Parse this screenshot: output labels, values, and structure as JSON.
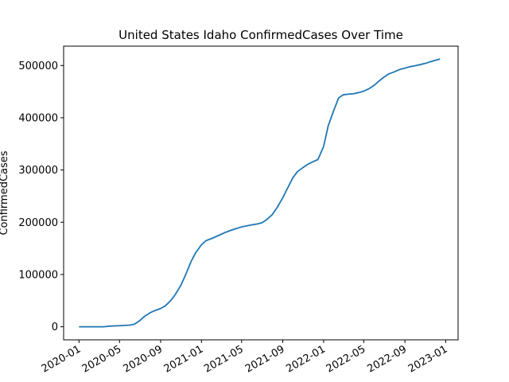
{
  "chart_data": {
    "type": "line",
    "title": "United States Idaho ConfirmedCases Over Time",
    "xlabel": "",
    "ylabel": "ConfirmedCases",
    "x_tick_labels": [
      "2020-01",
      "2020-05",
      "2020-09",
      "2021-01",
      "2021-05",
      "2021-09",
      "2022-01",
      "2022-05",
      "2022-09",
      "2023-01"
    ],
    "y_ticks": [
      0,
      100000,
      200000,
      300000,
      400000,
      500000
    ],
    "y_tick_labels": [
      "0",
      "100000",
      "200000",
      "300000",
      "400000",
      "500000"
    ],
    "ylim": [
      -25000,
      537000
    ],
    "xlim": [
      "2019-11-16",
      "2023-02-07"
    ],
    "grid": false,
    "series": [
      {
        "color": "#1f77b4",
        "points": [
          [
            "2020-01-01",
            0
          ],
          [
            "2020-03-15",
            0
          ],
          [
            "2020-04-01",
            1200
          ],
          [
            "2020-05-01",
            2000
          ],
          [
            "2020-06-01",
            3200
          ],
          [
            "2020-06-15",
            5000
          ],
          [
            "2020-07-01",
            12000
          ],
          [
            "2020-07-15",
            20000
          ],
          [
            "2020-08-01",
            27000
          ],
          [
            "2020-08-15",
            31000
          ],
          [
            "2020-09-01",
            35000
          ],
          [
            "2020-09-15",
            40000
          ],
          [
            "2020-10-01",
            50000
          ],
          [
            "2020-10-15",
            62000
          ],
          [
            "2020-11-01",
            80000
          ],
          [
            "2020-11-15",
            100000
          ],
          [
            "2020-12-01",
            125000
          ],
          [
            "2020-12-15",
            142000
          ],
          [
            "2021-01-01",
            157000
          ],
          [
            "2021-01-15",
            165000
          ],
          [
            "2021-02-01",
            169000
          ],
          [
            "2021-02-15",
            173000
          ],
          [
            "2021-03-01",
            177000
          ],
          [
            "2021-03-15",
            181000
          ],
          [
            "2021-04-01",
            185000
          ],
          [
            "2021-04-15",
            188000
          ],
          [
            "2021-05-01",
            191000
          ],
          [
            "2021-05-15",
            193000
          ],
          [
            "2021-06-01",
            195000
          ],
          [
            "2021-06-15",
            196500
          ],
          [
            "2021-07-01",
            199000
          ],
          [
            "2021-07-15",
            205000
          ],
          [
            "2021-08-01",
            215000
          ],
          [
            "2021-08-15",
            228000
          ],
          [
            "2021-09-01",
            247000
          ],
          [
            "2021-09-15",
            265000
          ],
          [
            "2021-10-01",
            285000
          ],
          [
            "2021-10-15",
            297000
          ],
          [
            "2021-11-01",
            305000
          ],
          [
            "2021-11-15",
            311000
          ],
          [
            "2021-12-01",
            316000
          ],
          [
            "2021-12-15",
            320000
          ],
          [
            "2022-01-01",
            345000
          ],
          [
            "2022-01-15",
            385000
          ],
          [
            "2022-02-01",
            415000
          ],
          [
            "2022-02-15",
            438000
          ],
          [
            "2022-03-01",
            444000
          ],
          [
            "2022-03-15",
            445000
          ],
          [
            "2022-04-01",
            446000
          ],
          [
            "2022-04-15",
            448000
          ],
          [
            "2022-05-01",
            451000
          ],
          [
            "2022-05-15",
            455000
          ],
          [
            "2022-06-01",
            462000
          ],
          [
            "2022-06-15",
            470000
          ],
          [
            "2022-07-01",
            478000
          ],
          [
            "2022-07-15",
            484000
          ],
          [
            "2022-08-01",
            488000
          ],
          [
            "2022-08-15",
            492000
          ],
          [
            "2022-09-01",
            495000
          ],
          [
            "2022-09-15",
            497500
          ],
          [
            "2022-10-01",
            499500
          ],
          [
            "2022-10-15",
            501500
          ],
          [
            "2022-11-01",
            504000
          ],
          [
            "2022-11-15",
            507000
          ],
          [
            "2022-12-01",
            510000
          ],
          [
            "2022-12-15",
            512500
          ]
        ]
      }
    ]
  }
}
